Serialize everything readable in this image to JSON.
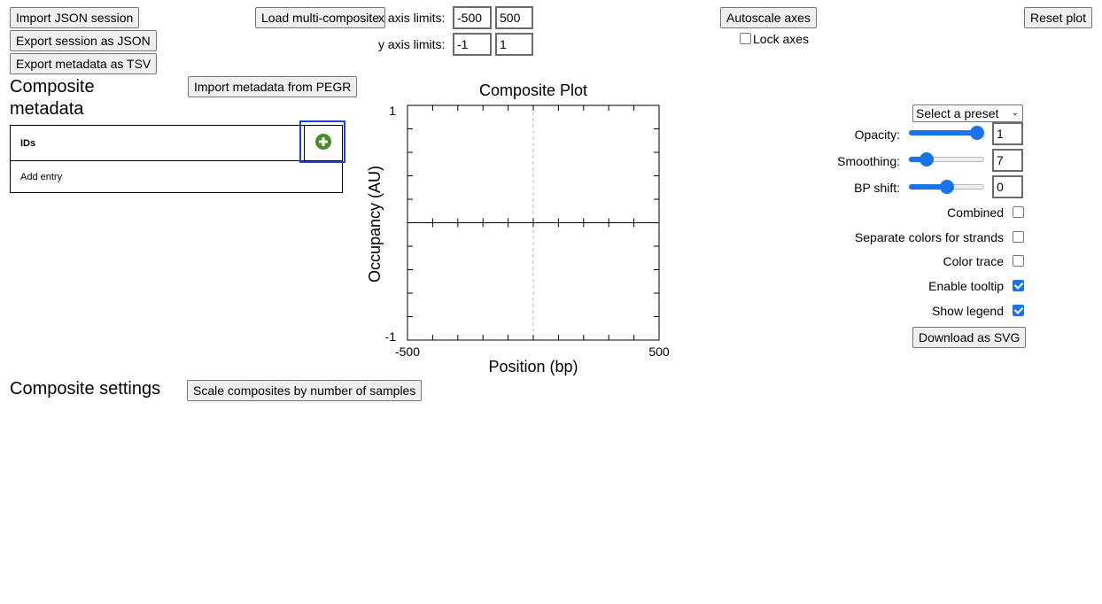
{
  "top_buttons": {
    "import_json": "Import JSON session",
    "export_json": "Export session as JSON",
    "export_tsv": "Export metadata as TSV",
    "load_multi": "Load multi-composite",
    "autoscale": "Autoscale axes",
    "reset_plot": "Reset plot"
  },
  "axes_limits": {
    "x_label": "x axis limits:",
    "x_min": "-500",
    "x_max": "500",
    "y_label": "y axis limits:",
    "y_min": "-1",
    "y_max": "1",
    "lock_label": "Lock axes",
    "lock_checked": false
  },
  "metadata": {
    "heading": "Composite metadata",
    "import_pegr": "Import metadata from PEGR",
    "column_header": "IDs",
    "add_icon": "plus-circle-icon",
    "add_entry": "Add entry"
  },
  "settings": {
    "heading": "Composite settings",
    "scale_button": "Scale composites by number of samples"
  },
  "chart_data": {
    "type": "line",
    "title": "Composite Plot",
    "xlabel": "Position (bp)",
    "ylabel": "Occupancy (AU)",
    "xlim": [
      -500,
      500
    ],
    "ylim": [
      -1,
      1
    ],
    "x_tick_labels": [
      "-500",
      "500"
    ],
    "y_tick_labels": [
      "1",
      "-1"
    ],
    "series": [],
    "center_line_x": 0,
    "zero_line_y": 0
  },
  "controls": {
    "preset_select": "Select a preset",
    "opacity_label": "Opacity:",
    "opacity_value": "1",
    "opacity_fraction": 1.0,
    "smoothing_label": "Smoothing:",
    "smoothing_value": "7",
    "smoothing_fraction": 0.24,
    "bp_shift_label": "BP shift:",
    "bp_shift_value": "0",
    "bp_shift_fraction": 0.5,
    "combined_label": "Combined",
    "combined_checked": false,
    "separate_colors_label": "Separate colors for strands",
    "separate_colors_checked": false,
    "color_trace_label": "Color trace",
    "color_trace_checked": false,
    "enable_tooltip_label": "Enable tooltip",
    "enable_tooltip_checked": true,
    "show_legend_label": "Show legend",
    "show_legend_checked": true,
    "download_svg": "Download as SVG",
    "accent_color": "#1a73e8",
    "add_icon_color": "#4a8c2a",
    "highlight_color": "#1a44d6"
  }
}
